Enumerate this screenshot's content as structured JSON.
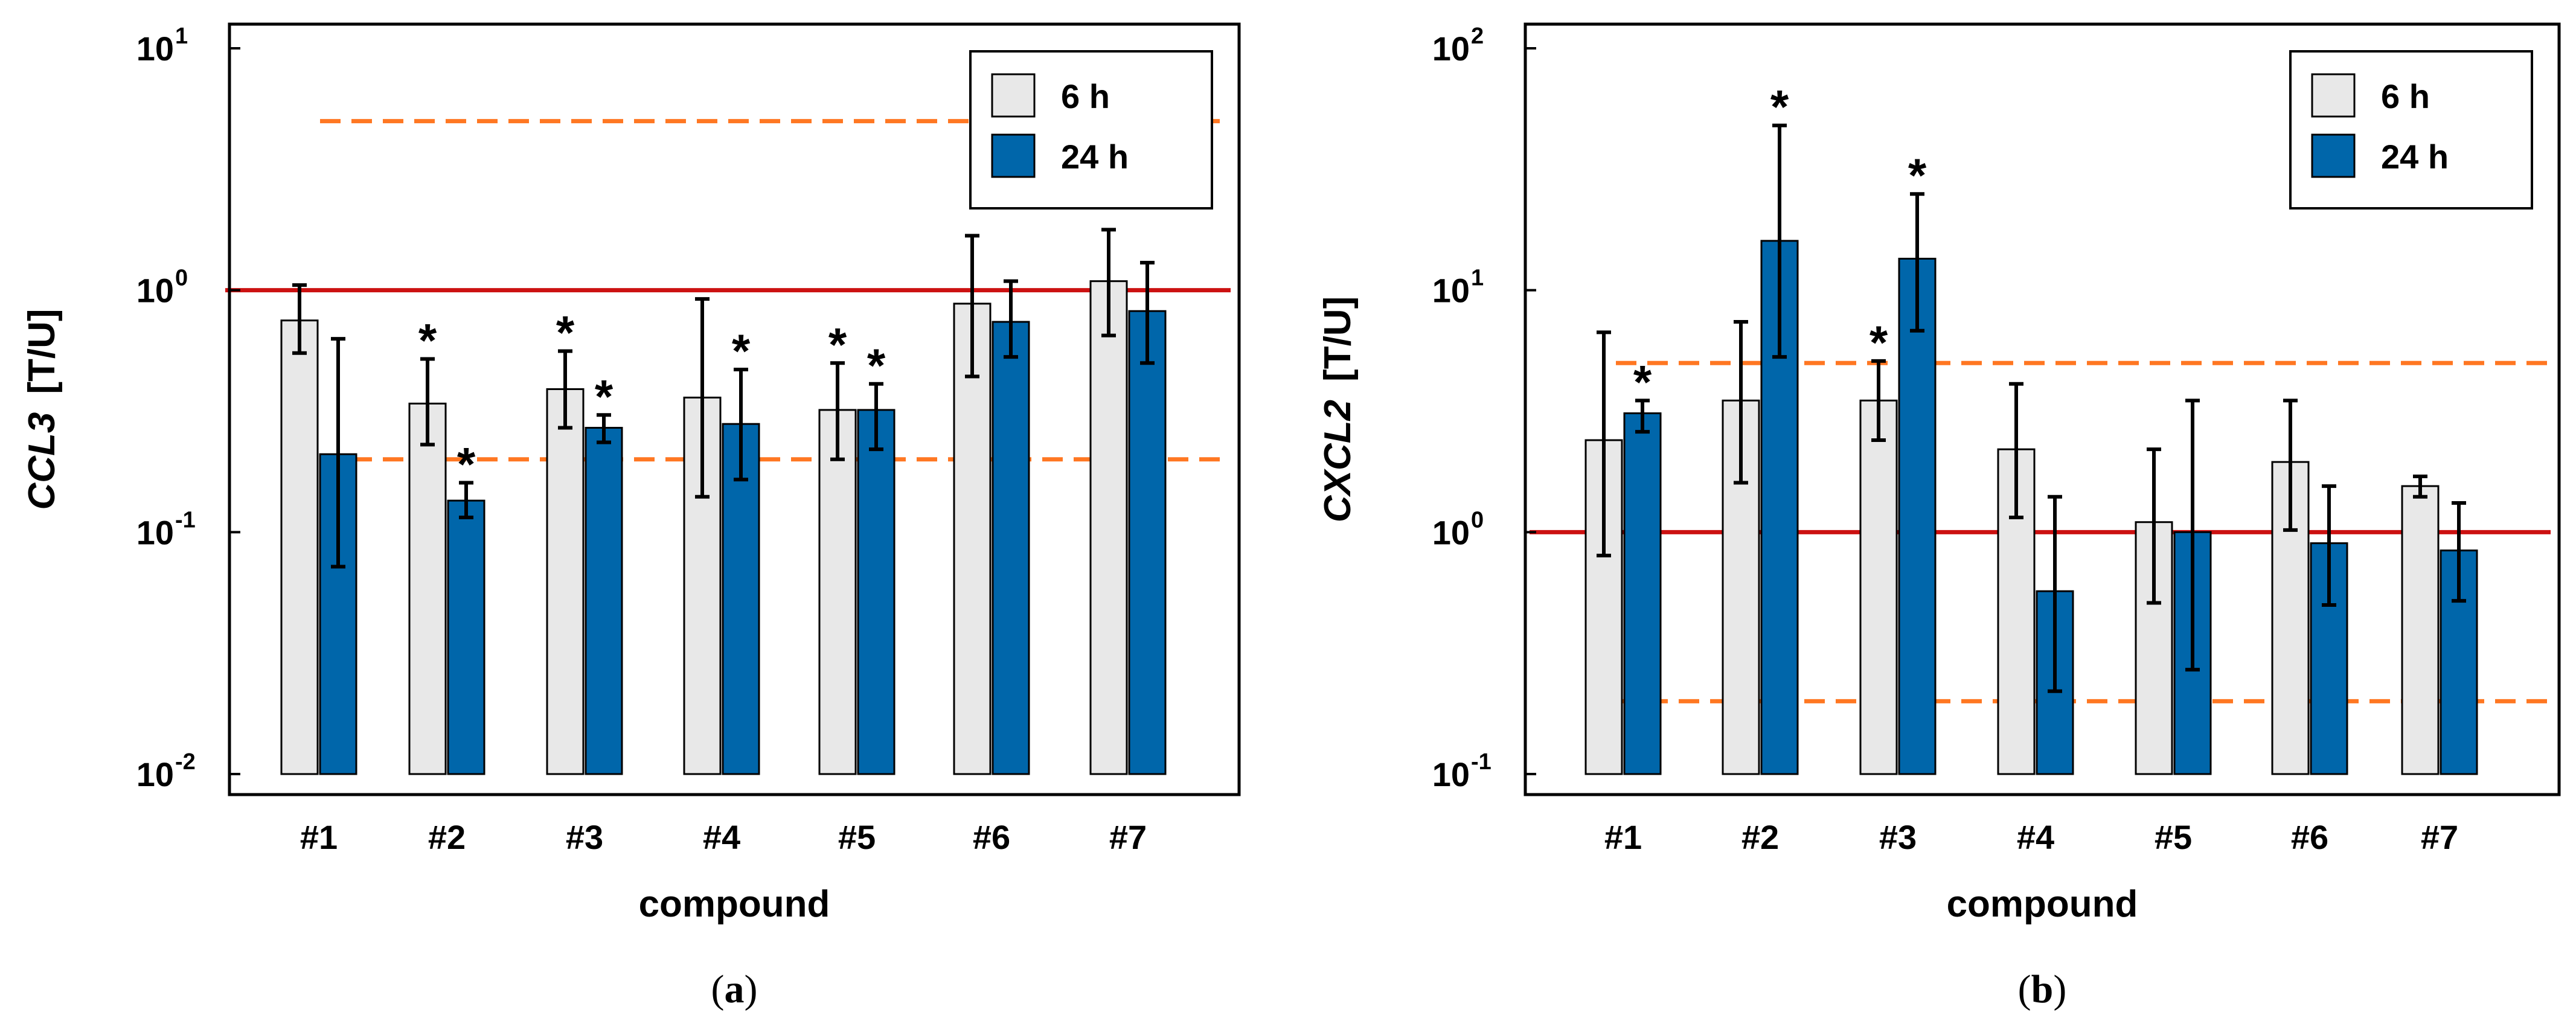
{
  "chart_data": [
    {
      "type": "bar",
      "panel_label": "a",
      "ylabel_gene": "CCL3",
      "ylabel_unit": "[T/U]",
      "xlabel": "compound",
      "yscale": "log",
      "ylim": [
        0.01,
        10
      ],
      "yticks": [
        {
          "base": "10",
          "exp": "1",
          "value": 10
        },
        {
          "base": "10",
          "exp": "0",
          "value": 1
        },
        {
          "base": "10",
          "exp": "-1",
          "value": 0.1
        },
        {
          "base": "10",
          "exp": "-2",
          "value": 0.01
        }
      ],
      "categories": [
        "#1",
        "#2",
        "#3",
        "#4",
        "#5",
        "#6",
        "#7"
      ],
      "legend": {
        "position": "top-right",
        "entries": [
          "6 h",
          "24 h"
        ]
      },
      "series": [
        {
          "name": "6 h",
          "color": "#e8e8e8",
          "values": [
            0.75,
            0.34,
            0.39,
            0.36,
            0.32,
            0.88,
            1.09
          ],
          "err_low": [
            0.55,
            0.23,
            0.27,
            0.14,
            0.2,
            0.44,
            0.65
          ],
          "err_high": [
            1.05,
            0.52,
            0.56,
            0.92,
            0.5,
            1.68,
            1.78
          ],
          "significant": [
            false,
            true,
            true,
            false,
            true,
            false,
            false
          ]
        },
        {
          "name": "24 h",
          "color": "#0066aa",
          "values": [
            0.21,
            0.135,
            0.27,
            0.28,
            0.32,
            0.74,
            0.82
          ],
          "err_low": [
            0.072,
            0.115,
            0.235,
            0.165,
            0.22,
            0.53,
            0.5
          ],
          "err_high": [
            0.63,
            0.16,
            0.305,
            0.47,
            0.41,
            1.09,
            1.3
          ],
          "significant": [
            false,
            true,
            true,
            true,
            true,
            false,
            false
          ]
        }
      ],
      "reference_lines": [
        {
          "value": 1,
          "style": "solid",
          "color": "#cc1111"
        },
        {
          "value": 5,
          "style": "dashed",
          "color": "#ff7722"
        },
        {
          "value": 0.2,
          "style": "dashed",
          "color": "#ff7722"
        }
      ]
    },
    {
      "type": "bar",
      "panel_label": "b",
      "ylabel_gene": "CXCL2",
      "ylabel_unit": "[T/U]",
      "xlabel": "compound",
      "yscale": "log",
      "ylim": [
        0.1,
        100
      ],
      "yticks": [
        {
          "base": "10",
          "exp": "2",
          "value": 100
        },
        {
          "base": "10",
          "exp": "1",
          "value": 10
        },
        {
          "base": "10",
          "exp": "0",
          "value": 1
        },
        {
          "base": "10",
          "exp": "-1",
          "value": 0.1
        }
      ],
      "categories": [
        "#1",
        "#2",
        "#3",
        "#4",
        "#5",
        "#6",
        "#7"
      ],
      "legend": {
        "position": "top-right",
        "entries": [
          "6 h",
          "24 h"
        ]
      },
      "series": [
        {
          "name": "6 h",
          "color": "#e8e8e8",
          "values": [
            2.4,
            3.5,
            3.5,
            2.2,
            1.1,
            1.95,
            1.55
          ],
          "err_low": [
            0.8,
            1.6,
            2.4,
            1.15,
            0.51,
            1.02,
            1.4
          ],
          "err_high": [
            6.7,
            7.4,
            5.1,
            4.1,
            2.2,
            3.5,
            1.7
          ],
          "significant": [
            false,
            false,
            true,
            false,
            false,
            false,
            false
          ]
        },
        {
          "name": "24 h",
          "color": "#0066aa",
          "values": [
            3.1,
            16,
            13.5,
            0.57,
            1.0,
            0.9,
            0.84
          ],
          "err_low": [
            2.6,
            5.3,
            6.8,
            0.22,
            0.27,
            0.5,
            0.52
          ],
          "err_high": [
            3.5,
            48,
            25,
            1.4,
            3.5,
            1.55,
            1.32
          ],
          "significant": [
            true,
            true,
            true,
            false,
            false,
            false,
            false
          ]
        }
      ],
      "reference_lines": [
        {
          "value": 1,
          "style": "solid",
          "color": "#cc1111"
        },
        {
          "value": 5,
          "style": "dashed",
          "color": "#ff7722"
        },
        {
          "value": 0.2,
          "style": "dashed",
          "color": "#ff7722"
        }
      ]
    }
  ]
}
